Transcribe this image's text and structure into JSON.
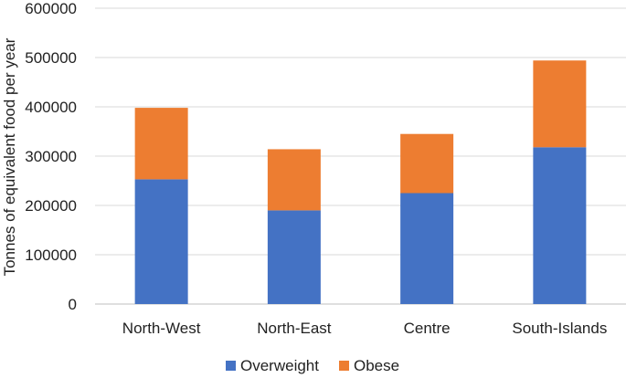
{
  "chart_data": {
    "type": "bar",
    "stacked": true,
    "categories": [
      "North-West",
      "North-East",
      "Centre",
      "South-Islands"
    ],
    "series": [
      {
        "name": "Overweight",
        "values": [
          253000,
          190000,
          225000,
          318000
        ],
        "color": "#4472C4"
      },
      {
        "name": "Obese",
        "values": [
          145000,
          124000,
          120000,
          176000
        ],
        "color": "#ED7D31"
      }
    ],
    "xlabel": "",
    "ylabel": "Tonnes of equivalent food per year",
    "ylim": [
      0,
      600000
    ],
    "yticks": [
      "0",
      "100000",
      "200000",
      "300000",
      "400000",
      "500000",
      "600000"
    ],
    "grid": true,
    "legend_position": "bottom"
  }
}
